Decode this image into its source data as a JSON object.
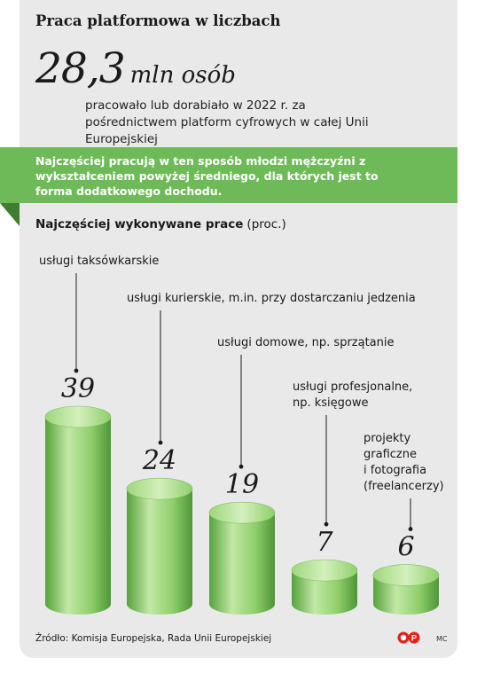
{
  "title": "Praca platformowa w liczbach",
  "headline": {
    "number": "28,3",
    "unit": "mln osób"
  },
  "intro": "pracowało lub dorabiało w 2022 r. za pośrednictwem platform cyfrowych w całej Unii Europejskiej",
  "banner": "Najczęściej pracują w ten sposób młodzi mężczyźni z wykształceniem powyżej średniego, dla których jest to forma dodatkowego dochodu.",
  "chart_heading": {
    "main": "Najczęściej wykonywane prace",
    "unit": "(proc.)"
  },
  "source": "Źródło: Komisja Europejska, Rada Unii Europejskiej",
  "credit": "MC",
  "logo_text": "OP",
  "colors": {
    "accent": "#6fba58",
    "accent_dark": "#3f7d2f",
    "bar_light": "#c2e8a6",
    "bar_mid": "#8fcf6b",
    "bar_dark": "#57a23e",
    "panel": "#e9e9e9"
  },
  "chart_data": {
    "type": "bar",
    "title": "Najczęściej wykonywane prace (proc.)",
    "categories": [
      [
        "usługi taksówkarskie"
      ],
      [
        "usługi kurierskie, m.in. przy dostarczaniu jedzenia"
      ],
      [
        "usługi domowe, np. sprzątanie"
      ],
      [
        "usługi profesjonalne,",
        "np. księgowe"
      ],
      [
        "projekty",
        "graficzne",
        "i fotografia",
        "(freelancerzy)"
      ]
    ],
    "values": [
      39,
      24,
      19,
      7,
      6
    ],
    "value_labels": [
      "39",
      "24",
      "19",
      "7",
      "6"
    ],
    "ylim": [
      0,
      39
    ],
    "xlabel": "",
    "ylabel": ""
  }
}
